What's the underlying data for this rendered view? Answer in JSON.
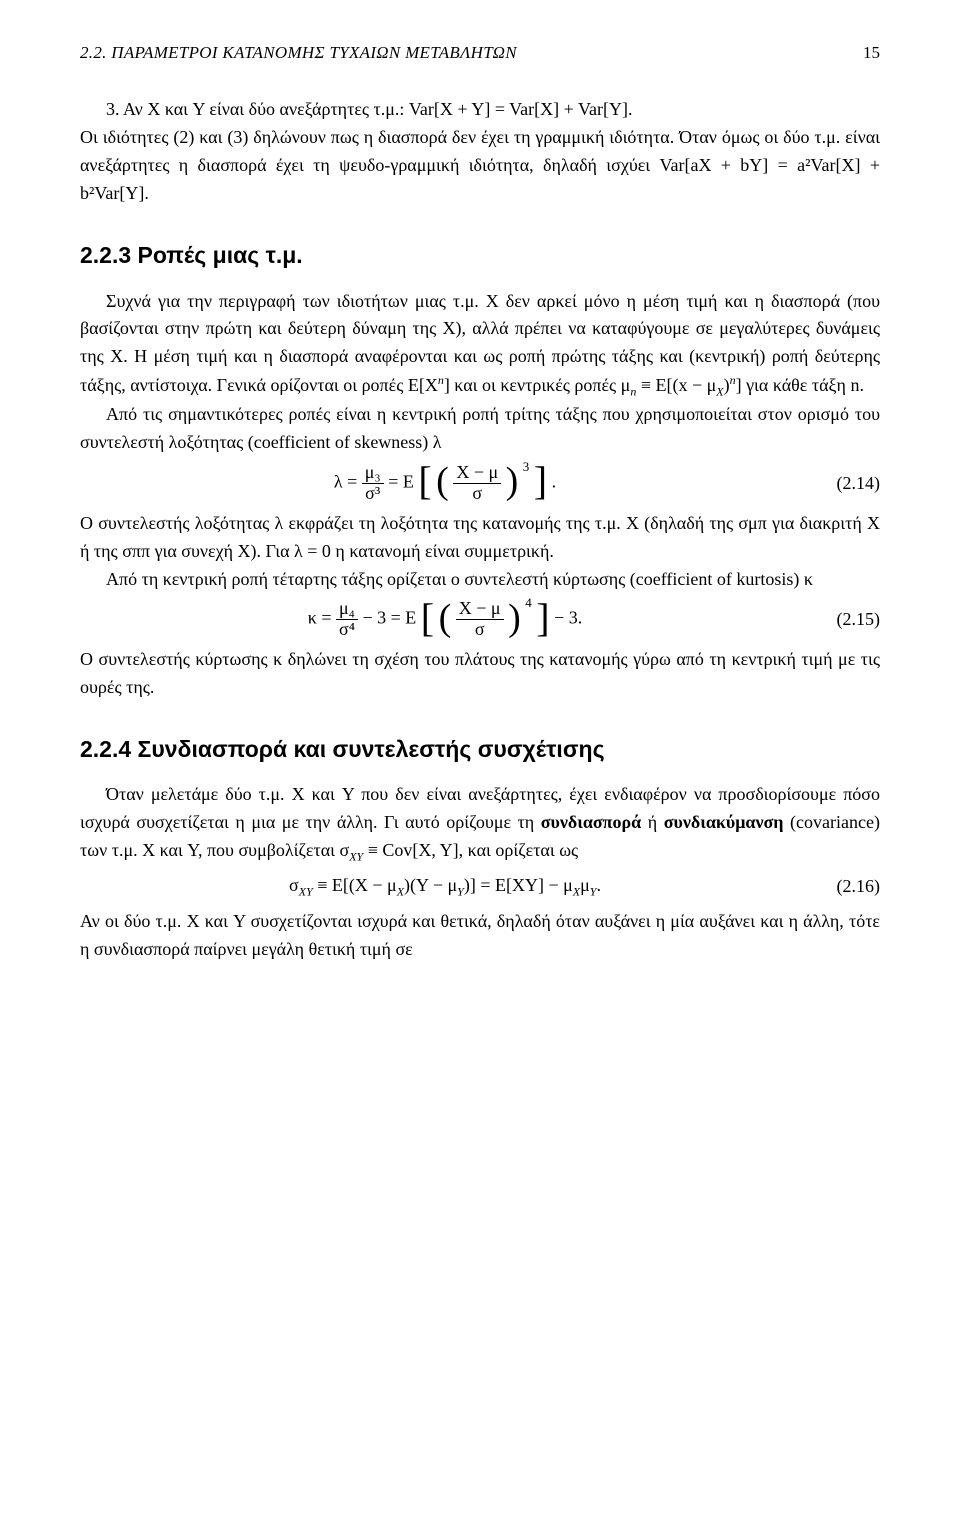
{
  "header": {
    "section_label": "2.2.  ΠΑΡΑΜΕΤΡΟΙ ΚΑΤΑΝΟΜΗΣ ΤΥΧΑΙΩΝ ΜΕΤΑΒΛΗΤΩΝ",
    "page_number": "15"
  },
  "item3": {
    "number": "3.",
    "text": "Αν X και Y είναι δύο ανεξάρτητες τ.μ.: Var[X + Y] = Var[X] + Var[Y]."
  },
  "para1": {
    "text": "Οι ιδιότητες (2) και (3) δηλώνουν πως η διασπορά δεν έχει τη γραμμική ιδιότητα. Όταν όμως οι δύο τ.μ. είναι ανεξάρτητες η διασπορά έχει τη ψευδο-γραμμική ιδιότητα, δηλαδή ισχύει Var[aX + bY] = a²Var[X] + b²Var[Y]."
  },
  "sub223": {
    "title": "2.2.3   Ροπές μιας τ.μ."
  },
  "para2a": {
    "pre": "Συχνά για την περιγραφή των ιδιοτήτων μιας τ.μ. X δεν αρκεί μόνο η μέση τιμή και η διασπορά (που βασίζονται στην πρώτη και δεύτερη δύναμη της X), αλλά πρέπει να καταφύγουμε σε μεγαλύτερες δυνάμεις της X. Η μέση τιμή και η διασπορά αναφέρονται και ως ροπή πρώτης τάξης και (κεντρική) ροπή δεύτερης τάξης, αντίστοιχα. Γενικά ορίζονται οι ροπές E[X",
    "mid1": "] και οι κεντρικές ροπές μ",
    "mid2": " ≡ E[(x − μ",
    "mid3": ")",
    "post": "] για κάθε τάξη n."
  },
  "para2b": {
    "text": "Από τις σημαντικότερες ροπές είναι η κεντρική ροπή τρίτης τάξης που χρησιμοποιείται στον ορισμό του συντελεστή λοξότητας (coefficient of skewness) λ"
  },
  "eq214": {
    "lhs": "λ =",
    "frac_num": "μ₃",
    "frac_den": "σ³",
    "mid": " = E",
    "inner_num": "X − μ",
    "inner_den": "σ",
    "exp": "3",
    "dot": ".",
    "num": "(2.14)"
  },
  "para3": {
    "text": "Ο συντελεστής λοξότητας λ εκφράζει τη λοξότητα της κατανομής της τ.μ. X (δηλαδή της σμπ για διακριτή X ή της σππ για συνεχή X). Για λ = 0 η κατανομή είναι συμμετρική."
  },
  "para4": {
    "text": "Από τη κεντρική ροπή τέταρτης τάξης ορίζεται ο συντελεστή κύρτωσης (coefficient of kurtosis) κ"
  },
  "eq215": {
    "lhs": "κ =",
    "frac_num": "μ₄",
    "frac_den": "σ⁴",
    "minus3a": " − 3 = E",
    "inner_num": "X − μ",
    "inner_den": "σ",
    "exp": "4",
    "minus3b": " − 3.",
    "num": "(2.15)"
  },
  "para5": {
    "text": "Ο συντελεστής κύρτωσης κ δηλώνει τη σχέση του πλάτους της κατανομής γύρω από τη κεντρική τιμή με τις ουρές της."
  },
  "sub224": {
    "title": "2.2.4   Συνδιασπορά και συντελεστής συσχέτισης"
  },
  "para6": {
    "pre": "Όταν μελετάμε δύο τ.μ. X και Y που δεν είναι ανεξάρτητες, έχει ενδιαφέρον να προσδιορίσουμε πόσο ισχυρά συσχετίζεται η μια με την άλλη. Γι αυτό ορίζουμε τη ",
    "b1": "συνδιασπορά",
    "mid1": " ή ",
    "b2": "συνδιακύμανση",
    "mid2": " (covariance) των τ.μ. X και Y, που συμβολίζεται σ",
    "mid3": " ≡ Cov[X, Y], και ορίζεται ως"
  },
  "eq216": {
    "lhs_a": "σ",
    "lhs_b": " ≡ E[(X − μ",
    "lhs_c": ")(Y − μ",
    "lhs_d": ")] = E[XY] − μ",
    "lhs_e": "μ",
    "dot": ".",
    "num": "(2.16)"
  },
  "para7": {
    "text": "Αν οι δύο τ.μ. X και Y συσχετίζονται ισχυρά και θετικά, δηλαδή όταν αυξάνει η μία αυξάνει και η άλλη, τότε η συνδιασπορά παίρνει μεγάλη θετική τιμή σε"
  }
}
